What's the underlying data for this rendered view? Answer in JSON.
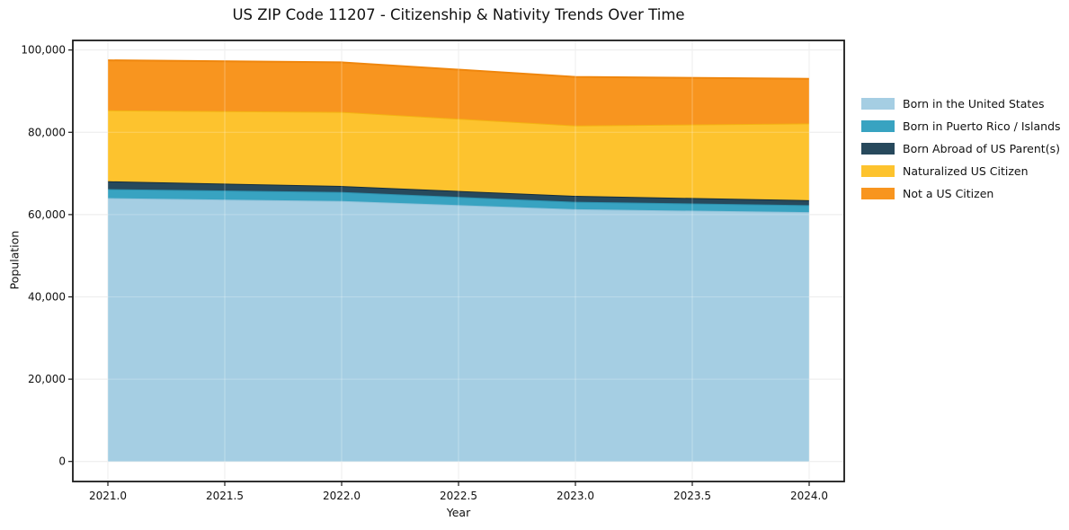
{
  "title": "US ZIP Code 11207 - Citizenship & Nativity Trends Over Time",
  "chart_data": {
    "type": "area",
    "stacked": true,
    "title": "US ZIP Code 11207 - Citizenship & Nativity Trends Over Time",
    "xlabel": "Year",
    "ylabel": "Population",
    "x": [
      2021,
      2022,
      2023,
      2024
    ],
    "series": [
      {
        "id": "born-us",
        "name": "Born in the United States",
        "color": "#a5cee3",
        "edge_color": "#8fc2da",
        "values": [
          64000,
          63300,
          61300,
          60600
        ]
      },
      {
        "id": "born-pr-islands",
        "name": "Born in Puerto Rico / Islands",
        "color": "#38a3c1",
        "edge_color": "#2b8fac",
        "values": [
          2200,
          2200,
          1800,
          1700
        ]
      },
      {
        "id": "born-abroad",
        "name": "Born Abroad of US Parent(s)",
        "color": "#27495c",
        "edge_color": "#152e3d",
        "values": [
          1900,
          1450,
          1450,
          1200
        ]
      },
      {
        "id": "naturalized",
        "name": "Naturalized US Citizen",
        "color": "#fdc32e",
        "edge_color": "#f3b312",
        "values": [
          17250,
          18000,
          17100,
          18650
        ]
      },
      {
        "id": "not-citizen",
        "name": "Not a US Citizen",
        "color": "#f8951f",
        "edge_color": "#ef860d",
        "values": [
          12150,
          12050,
          11800,
          10850
        ]
      }
    ],
    "stack_totals": [
      97500,
      97000,
      93450,
      93000
    ],
    "xlim": [
      2020.85,
      2024.15
    ],
    "ylim": [
      -4870,
      102330
    ],
    "xticks": {
      "values": [
        2021.0,
        2021.5,
        2022.0,
        2022.5,
        2023.0,
        2023.5,
        2024.0
      ],
      "labels": [
        "2021.0",
        "2021.5",
        "2022.0",
        "2022.5",
        "2023.0",
        "2023.5",
        "2024.0"
      ]
    },
    "yticks": {
      "values": [
        0,
        20000,
        40000,
        60000,
        80000,
        100000
      ],
      "labels": [
        "0",
        "20,000",
        "40,000",
        "60,000",
        "80,000",
        "100,000"
      ]
    },
    "grid": true,
    "grid_color": "#e6e6e6",
    "spine_color": "#1a1a1a",
    "text_color": "#111111",
    "legend_position": "right-outside"
  }
}
